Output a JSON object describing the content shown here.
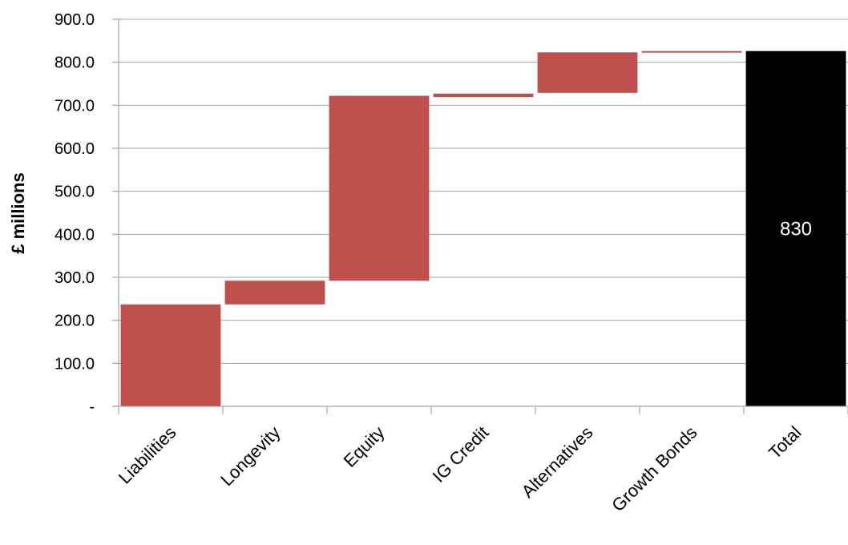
{
  "chart_data": {
    "type": "bar",
    "subtype": "waterfall",
    "title": "",
    "xlabel": "",
    "ylabel": "£ millions",
    "ylim": [
      0,
      900
    ],
    "yticks": [
      0,
      100,
      200,
      300,
      400,
      500,
      600,
      700,
      800,
      900
    ],
    "ytick_labels": [
      "-",
      "100.0",
      "200.0",
      "300.0",
      "400.0",
      "500.0",
      "600.0",
      "700.0",
      "800.0",
      "900.0"
    ],
    "categories": [
      "Liabilities",
      "Longevity",
      "Equity",
      "IG Credit",
      "Alternatives",
      "Growth Bonds",
      "Total"
    ],
    "bars": [
      {
        "category": "Liabilities",
        "base": 0,
        "value": 237
      },
      {
        "category": "Longevity",
        "base": 237,
        "value": 55
      },
      {
        "category": "Equity",
        "base": 292,
        "value": 430
      },
      {
        "category": "IG Credit",
        "base": 719,
        "value": 8
      },
      {
        "category": "Alternatives",
        "base": 729,
        "value": 94
      },
      {
        "category": "Growth Bonds",
        "base": 823,
        "value": 3
      },
      {
        "category": "Total",
        "base": 0,
        "value": 826
      }
    ],
    "data_labels": [
      {
        "category": "Total",
        "text": "830"
      }
    ],
    "colors": {
      "increase": "#c0504d",
      "total": "#000000",
      "grid": "#a6a6a6",
      "label_on_total": "#ffffff"
    },
    "grid": true,
    "legend": false
  }
}
